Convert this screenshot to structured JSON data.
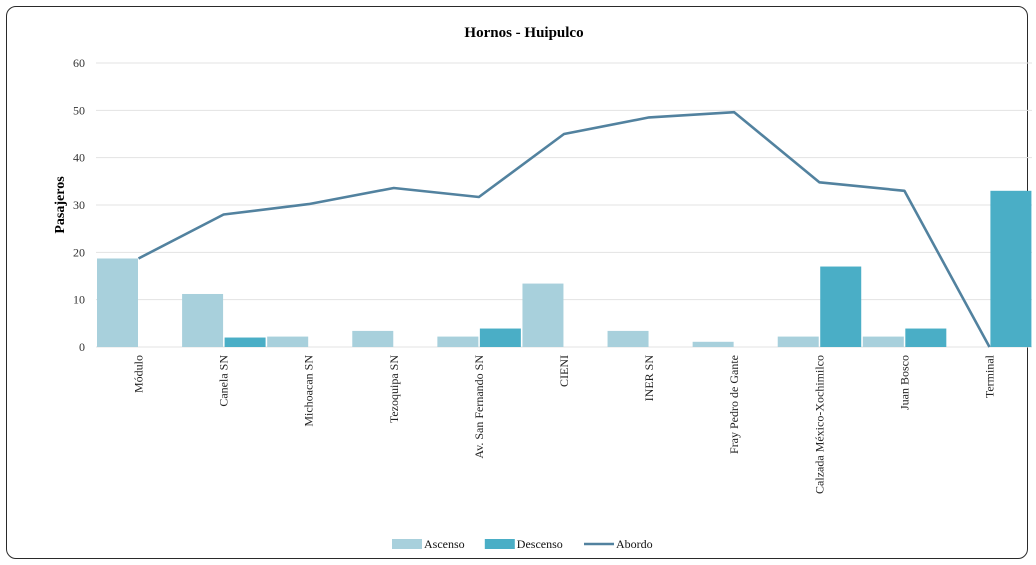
{
  "chart_data": {
    "type": "bar",
    "title": "Hornos - Huipulco",
    "ylabel": "Pasajeros",
    "xlabel": "",
    "ylim": [
      0,
      60
    ],
    "yticks": [
      0,
      10,
      20,
      30,
      40,
      50,
      60
    ],
    "grid": true,
    "legend_position": "bottom",
    "categories": [
      "Módulo",
      "Canela SN",
      "Michoacan SN",
      "Tezoquipa SN",
      "Av. San Fernando SN",
      "CIENI",
      "INER SN",
      "Fray Pedro de Gante",
      "Calzada México-Xochimilco",
      "Juan Bosco",
      "Terminal"
    ],
    "series": [
      {
        "name": "Ascenso",
        "kind": "bar",
        "color": "#a8d0dc",
        "values": [
          18.7,
          11.2,
          2.2,
          3.4,
          2.2,
          13.4,
          3.4,
          1.1,
          2.2,
          2.2,
          0
        ]
      },
      {
        "name": "Descenso",
        "kind": "bar",
        "color": "#4aaec6",
        "values": [
          0,
          2.0,
          0,
          0,
          3.9,
          0,
          0,
          0,
          17.0,
          3.9,
          33.0
        ]
      },
      {
        "name": "Abordo",
        "kind": "line",
        "color": "#52829f",
        "values": [
          18.7,
          28.0,
          30.2,
          33.6,
          31.7,
          45.0,
          48.5,
          49.6,
          34.8,
          33.0,
          0
        ]
      }
    ]
  }
}
